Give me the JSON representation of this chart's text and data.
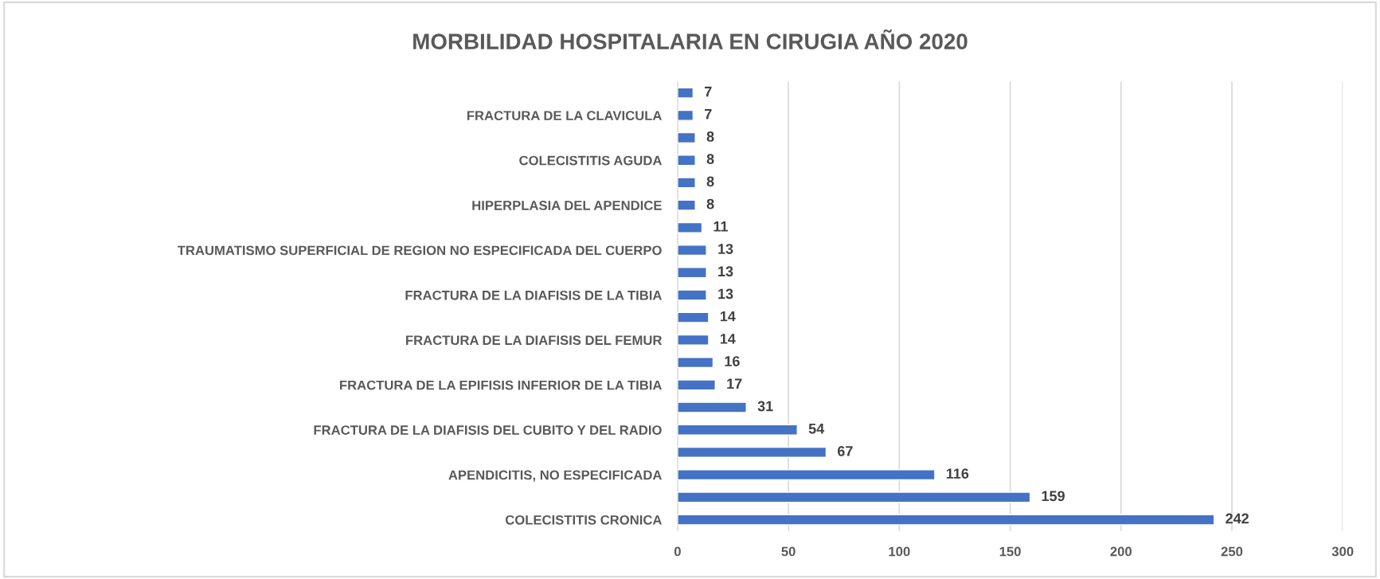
{
  "chart_data": {
    "type": "bar",
    "orientation": "horizontal",
    "title": "MORBILIDAD HOSPITALARIA EN CIRUGIA AÑO 2020",
    "categories": [
      null,
      "FRACTURA DE LA CLAVICULA",
      null,
      "COLECISTITIS AGUDA",
      null,
      "HIPERPLASIA DEL APENDICE",
      null,
      "TRAUMATISMO SUPERFICIAL DE REGION NO ESPECIFICADA DEL CUERPO",
      null,
      "FRACTURA DE LA DIAFISIS DE LA TIBIA",
      null,
      "FRACTURA DE LA DIAFISIS DEL FEMUR",
      null,
      "FRACTURA DE LA EPIFISIS INFERIOR DE LA TIBIA",
      null,
      "FRACTURA DE LA DIAFISIS DEL CUBITO Y DEL RADIO",
      null,
      "APENDICITIS, NO ESPECIFICADA",
      null,
      "COLECISTITIS CRONICA"
    ],
    "values": [
      7,
      7,
      8,
      8,
      8,
      8,
      11,
      13,
      13,
      13,
      14,
      14,
      16,
      17,
      31,
      54,
      67,
      116,
      159,
      242
    ],
    "color": "#4472c4",
    "xlim": [
      0,
      300
    ],
    "xticks": [
      0,
      50,
      100,
      150,
      200,
      250,
      300
    ],
    "grid": "x",
    "data_labels": true,
    "legend": false
  }
}
